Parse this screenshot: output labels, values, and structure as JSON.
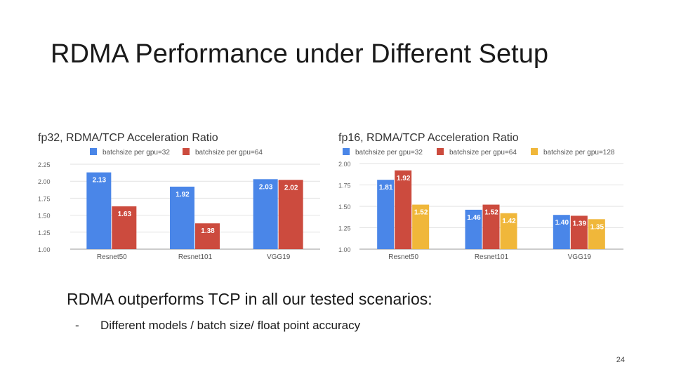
{
  "slide": {
    "title": "RDMA Performance under Different Setup",
    "main_text": "RDMA outperforms TCP in all our tested scenarios:",
    "bullet_marker": "-",
    "bullet_text": "Different models / batch size/ float point accuracy",
    "page_number": "24"
  },
  "chart_data": [
    {
      "type": "bar",
      "title": "fp32, RDMA/TCP Acceleration Ratio",
      "categories": [
        "Resnet50",
        "Resnet101",
        "VGG19"
      ],
      "series": [
        {
          "name": "batchsize per gpu=32",
          "color": "#4a86e8",
          "values": [
            2.13,
            1.92,
            2.03
          ],
          "labels": [
            "2.13",
            "1.92",
            "2.03"
          ]
        },
        {
          "name": "batchsize per gpu=64",
          "color": "#cc4b3e",
          "values": [
            1.63,
            1.38,
            2.02
          ],
          "labels": [
            "1.63",
            "1.38",
            "2.02"
          ]
        }
      ],
      "ylim": [
        1.0,
        2.25
      ],
      "yticks": [
        1.0,
        1.25,
        1.5,
        1.75,
        2.0,
        2.25
      ],
      "ytick_labels": [
        "1.00",
        "1.25",
        "1.50",
        "1.75",
        "2.00",
        "2.25"
      ],
      "legend": "top-left",
      "grid": true
    },
    {
      "type": "bar",
      "title": "fp16, RDMA/TCP Acceleration Ratio",
      "categories": [
        "Resnet50",
        "Resnet101",
        "VGG19"
      ],
      "series": [
        {
          "name": "batchsize per gpu=32",
          "color": "#4a86e8",
          "values": [
            1.81,
            1.46,
            1.4
          ],
          "labels": [
            "1.81",
            "1.46",
            "1.40"
          ]
        },
        {
          "name": "batchsize per gpu=64",
          "color": "#cc4b3e",
          "values": [
            1.92,
            1.52,
            1.39
          ],
          "labels": [
            "1.92",
            "1.52",
            "1.39"
          ]
        },
        {
          "name": "batchsize per gpu=128",
          "color": "#f0b73a",
          "values": [
            1.52,
            1.42,
            1.35
          ],
          "labels": [
            "1.52",
            "1.42",
            "1.35"
          ]
        }
      ],
      "ylim": [
        1.0,
        2.0
      ],
      "yticks": [
        1.0,
        1.25,
        1.5,
        1.75,
        2.0
      ],
      "ytick_labels": [
        "1.00",
        "1.25",
        "1.50",
        "1.75",
        "2.00"
      ],
      "legend": "top-left",
      "grid": true
    }
  ]
}
